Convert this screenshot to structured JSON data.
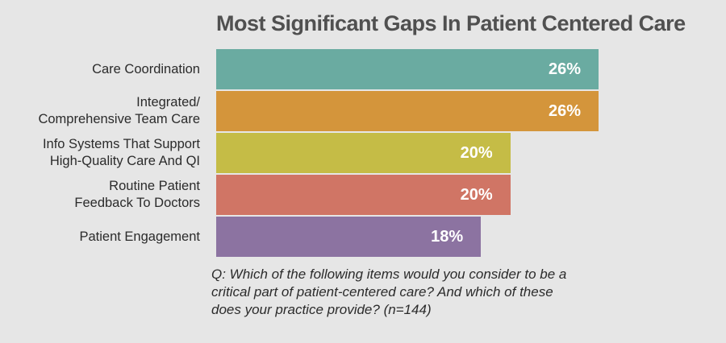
{
  "chart_data": {
    "type": "bar",
    "orientation": "horizontal",
    "title": "Most Significant Gaps In Patient Centered Care",
    "categories": [
      "Care Coordination",
      "Integrated/\nComprehensive Team Care",
      "Info Systems That Support\nHigh-Quality Care And QI",
      "Routine Patient\nFeedback To Doctors",
      "Patient Engagement"
    ],
    "values": [
      26,
      26,
      20,
      20,
      18
    ],
    "value_labels": [
      "26%",
      "26%",
      "20%",
      "20%",
      "18%"
    ],
    "colors": [
      "#6aaba1",
      "#d4953b",
      "#c5bc46",
      "#d07565",
      "#8c73a1"
    ],
    "note": "Q: Which of the following items would you consider to be a\ncritical part of patient-centered care? And which of these\ndoes your practice provide? (n=144)"
  }
}
